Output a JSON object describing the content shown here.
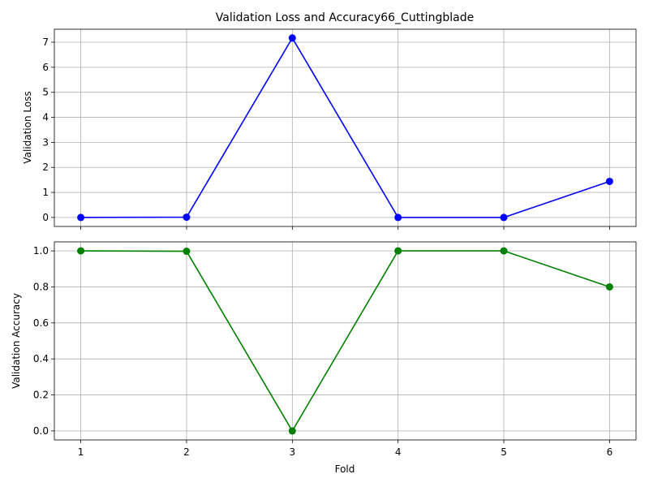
{
  "chart_data": [
    {
      "type": "line",
      "title": "Validation Loss and Accuracy66_Cuttingblade",
      "xlabel": "",
      "ylabel": "Validation Loss",
      "x": [
        1,
        2,
        3,
        4,
        5,
        6
      ],
      "xticks": [
        "1",
        "2",
        "3",
        "4",
        "5",
        "6"
      ],
      "xlim": [
        0.75,
        6.25
      ],
      "ylim": [
        -0.36,
        7.52
      ],
      "yticks": [
        "0",
        "1",
        "2",
        "3",
        "4",
        "5",
        "6",
        "7"
      ],
      "grid": true,
      "series": [
        {
          "values": [
            0.0,
            0.01,
            7.17,
            0.0,
            0.0,
            1.44
          ],
          "color": "#0000ff",
          "marker": "circle"
        }
      ]
    },
    {
      "type": "line",
      "title": "",
      "xlabel": "Fold",
      "ylabel": "Validation Accuracy",
      "x": [
        1,
        2,
        3,
        4,
        5,
        6
      ],
      "xticks": [
        "1",
        "2",
        "3",
        "4",
        "5",
        "6"
      ],
      "xlim": [
        0.75,
        6.25
      ],
      "ylim": [
        -0.05,
        1.05
      ],
      "yticks": [
        "0.0",
        "0.2",
        "0.4",
        "0.6",
        "0.8",
        "1.0"
      ],
      "grid": true,
      "series": [
        {
          "values": [
            1.0,
            0.998,
            0.0,
            1.0,
            1.0,
            0.8
          ],
          "color": "#008000",
          "marker": "circle"
        }
      ]
    }
  ]
}
